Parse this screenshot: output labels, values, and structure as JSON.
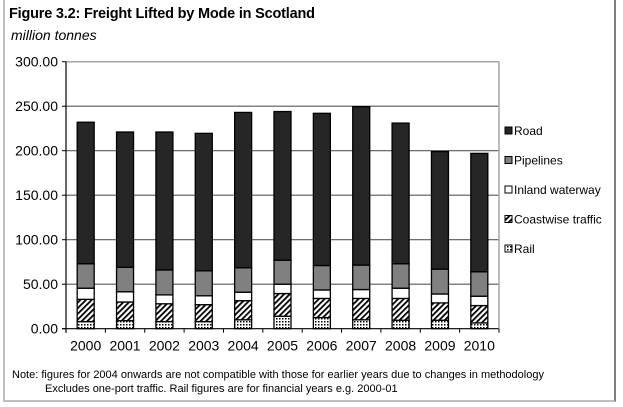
{
  "chart_data": {
    "type": "bar",
    "stacked": true,
    "title": "Figure 3.2: Freight Lifted by Mode in Scotland",
    "subtitle": "million tonnes",
    "xlabel": "",
    "ylabel": "million tonnes",
    "ylim": [
      0,
      300
    ],
    "yticks": [
      "0.00",
      "50.00",
      "100.00",
      "150.00",
      "200.00",
      "250.00",
      "300.00"
    ],
    "ytick_values": [
      0,
      50,
      100,
      150,
      200,
      250,
      300
    ],
    "grid": true,
    "legend_position": "right",
    "categories": [
      "2000",
      "2001",
      "2002",
      "2003",
      "2004",
      "2005",
      "2006",
      "2007",
      "2008",
      "2009",
      "2010"
    ],
    "series": [
      {
        "name": "Rail",
        "pattern": "dots",
        "values": [
          8,
          9,
          8,
          8,
          10,
          14,
          12.5,
          10,
          9.5,
          9.5,
          6.5
        ]
      },
      {
        "name": "Coastwise traffic",
        "pattern": "diagonal-hatch",
        "values": [
          25,
          21,
          20,
          19,
          21.5,
          25.5,
          21.5,
          24,
          24.5,
          19.5,
          19.5
        ]
      },
      {
        "name": "Inland waterway",
        "pattern": "white",
        "values": [
          12.5,
          11.5,
          10,
          10,
          9.5,
          10.5,
          9.5,
          10,
          11.5,
          10,
          10.5
        ]
      },
      {
        "name": "Pipelines",
        "pattern": "grey",
        "values": [
          27.5,
          27.5,
          28,
          28,
          27.5,
          27,
          27.5,
          27.5,
          27.5,
          28,
          27.5
        ]
      },
      {
        "name": "Road",
        "pattern": "dark",
        "values": [
          159,
          152,
          155,
          154.5,
          174.5,
          167,
          171,
          178,
          158,
          132,
          133
        ]
      }
    ],
    "legend_order": [
      "Road",
      "Pipelines",
      "Inland waterway",
      "Coastwise traffic",
      "Rail"
    ]
  },
  "colors": {
    "Road": "#262626",
    "Pipelines": "#808080",
    "Inland waterway": "#ffffff",
    "Coastwise traffic": "#ffffff",
    "Rail": "#ffffff",
    "gridline": "#595959",
    "bar_outline": "#000000"
  },
  "notes": {
    "line1": "Note: figures for 2004 onwards are not compatible with those for earlier years due to changes in methodology",
    "line2": "Excludes one-port traffic. Rail figures are for financial years e.g. 2000-01"
  }
}
